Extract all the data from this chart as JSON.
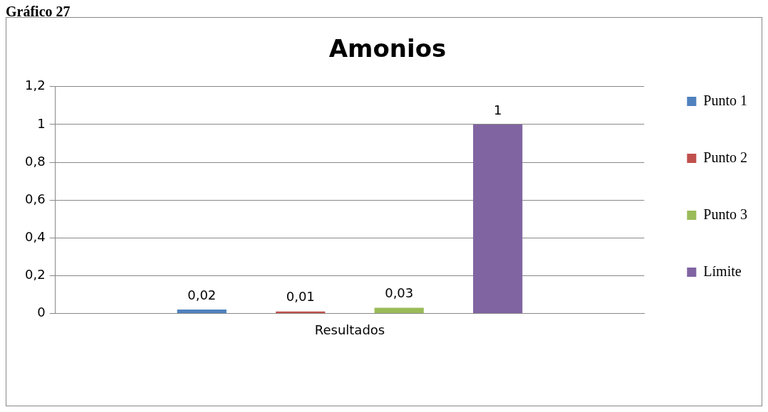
{
  "chart_data": {
    "type": "bar",
    "title": "Amonios",
    "annotations": [
      "Gráfico 27"
    ],
    "categories": [
      "Resultados"
    ],
    "series": [
      {
        "name": "Punto 1",
        "color": "#4f81bd",
        "values": [
          0.02
        ],
        "value_labels": [
          "0,02"
        ]
      },
      {
        "name": "Punto 2",
        "color": "#c0504d",
        "values": [
          0.01
        ],
        "value_labels": [
          "0,01"
        ]
      },
      {
        "name": "Punto 3",
        "color": "#9bbb59",
        "values": [
          0.03
        ],
        "value_labels": [
          "0,03"
        ]
      },
      {
        "name": "Límite",
        "color": "#8064a2",
        "values": [
          1
        ],
        "value_labels": [
          "1"
        ]
      }
    ],
    "ylim": [
      0,
      1.2
    ],
    "yticks": [
      0,
      {
        "value": 0.2,
        "label": "0,2"
      },
      {
        "value": 0.4,
        "label": "0,4"
      },
      {
        "value": 0.6,
        "label": "0,6"
      },
      {
        "value": 0.8,
        "label": "0,8"
      },
      1,
      {
        "value": 1.2,
        "label": "1,2"
      }
    ],
    "grid": "y",
    "legend": "right"
  }
}
